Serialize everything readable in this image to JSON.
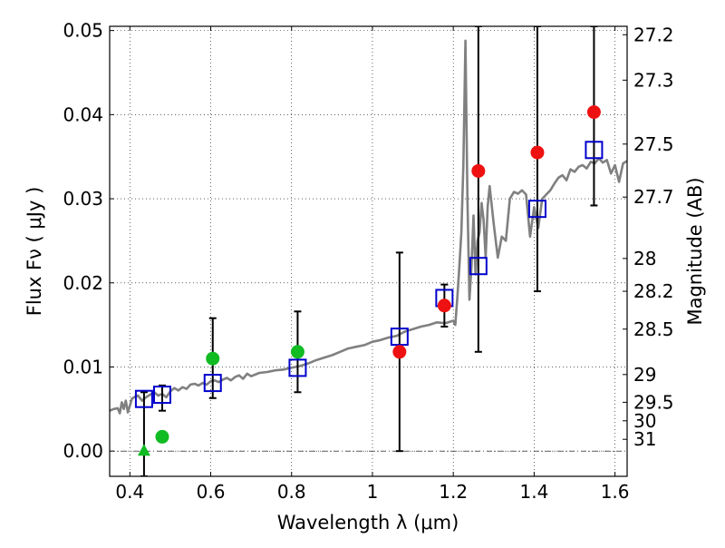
{
  "chart_data": {
    "type": "scatter",
    "xlabel": "Wavelength  λ (μm)",
    "ylabel": "Flux  Fν  ( μJy )",
    "ylabel2": "Magnitude (AB)",
    "xlim": [
      0.35,
      1.63
    ],
    "ylim": [
      -0.003,
      0.0505
    ],
    "grid": true,
    "x_ticks": [
      {
        "value": 0.4,
        "label": "0.4"
      },
      {
        "value": 0.6,
        "label": "0.6"
      },
      {
        "value": 0.8,
        "label": "0.8"
      },
      {
        "value": 1.0,
        "label": "1"
      },
      {
        "value": 1.2,
        "label": "1.2"
      },
      {
        "value": 1.4,
        "label": "1.4"
      },
      {
        "value": 1.6,
        "label": "1.6"
      }
    ],
    "y_ticks": [
      {
        "value": 0.0,
        "label": "0.00"
      },
      {
        "value": 0.01,
        "label": "0.01"
      },
      {
        "value": 0.02,
        "label": "0.02"
      },
      {
        "value": 0.03,
        "label": "0.03"
      },
      {
        "value": 0.04,
        "label": "0.04"
      },
      {
        "value": 0.05,
        "label": "0.05"
      }
    ],
    "right_ticks": [
      {
        "flux": 0.0495,
        "label": "27.2"
      },
      {
        "flux": 0.0441,
        "label": "27.3"
      },
      {
        "flux": 0.0365,
        "label": "27.5"
      },
      {
        "flux": 0.0302,
        "label": "27.7"
      },
      {
        "flux": 0.0229,
        "label": "28"
      },
      {
        "flux": 0.019,
        "label": "28.2"
      },
      {
        "flux": 0.0145,
        "label": "28.5"
      },
      {
        "flux": 0.0091,
        "label": "29"
      },
      {
        "flux": 0.0058,
        "label": "29.5"
      },
      {
        "flux": 0.0036,
        "label": "30"
      },
      {
        "flux": 0.0014,
        "label": "31"
      }
    ],
    "dashdot_line": 0.0,
    "colors": {
      "model": "#808080",
      "observed_green": "#11bb22",
      "observed_red": "#ee1111",
      "model_box": "#0000cc",
      "errorbar": "#000000"
    },
    "series": [
      {
        "name": "model SED",
        "kind": "line",
        "x": [
          0.35,
          0.36,
          0.37,
          0.375,
          0.38,
          0.385,
          0.39,
          0.395,
          0.4,
          0.405,
          0.41,
          0.42,
          0.43,
          0.44,
          0.45,
          0.46,
          0.47,
          0.48,
          0.49,
          0.5,
          0.51,
          0.52,
          0.53,
          0.54,
          0.55,
          0.56,
          0.57,
          0.58,
          0.59,
          0.6,
          0.61,
          0.62,
          0.63,
          0.64,
          0.65,
          0.66,
          0.67,
          0.68,
          0.69,
          0.7,
          0.72,
          0.74,
          0.76,
          0.78,
          0.8,
          0.82,
          0.84,
          0.86,
          0.88,
          0.9,
          0.92,
          0.94,
          0.96,
          0.98,
          1.0,
          1.02,
          1.04,
          1.06,
          1.08,
          1.1,
          1.12,
          1.14,
          1.16,
          1.18,
          1.2,
          1.205,
          1.21,
          1.215,
          1.22,
          1.225,
          1.23,
          1.235,
          1.24,
          1.245,
          1.25,
          1.255,
          1.26,
          1.265,
          1.27,
          1.275,
          1.28,
          1.285,
          1.29,
          1.3,
          1.31,
          1.32,
          1.33,
          1.34,
          1.35,
          1.36,
          1.37,
          1.38,
          1.39,
          1.4,
          1.41,
          1.42,
          1.43,
          1.44,
          1.45,
          1.46,
          1.47,
          1.48,
          1.49,
          1.5,
          1.51,
          1.52,
          1.53,
          1.54,
          1.55,
          1.56,
          1.57,
          1.58,
          1.59,
          1.6,
          1.61,
          1.62,
          1.63
        ],
        "y": [
          0.0048,
          0.005,
          0.0051,
          0.0045,
          0.0058,
          0.005,
          0.006,
          0.0046,
          0.0054,
          0.0062,
          0.0064,
          0.0066,
          0.006,
          0.0064,
          0.0067,
          0.007,
          0.0066,
          0.0068,
          0.0064,
          0.0071,
          0.0075,
          0.0072,
          0.0076,
          0.0074,
          0.0079,
          0.008,
          0.0078,
          0.0081,
          0.0079,
          0.0083,
          0.0084,
          0.0082,
          0.0085,
          0.0087,
          0.0084,
          0.0088,
          0.009,
          0.0086,
          0.0092,
          0.0089,
          0.0093,
          0.0094,
          0.0096,
          0.0097,
          0.0099,
          0.0101,
          0.0104,
          0.0108,
          0.0111,
          0.0114,
          0.0118,
          0.0122,
          0.0124,
          0.0126,
          0.013,
          0.0132,
          0.0135,
          0.0137,
          0.0142,
          0.0145,
          0.0148,
          0.015,
          0.0153,
          0.0152,
          0.0155,
          0.015,
          0.0182,
          0.022,
          0.026,
          0.034,
          0.0488,
          0.03,
          0.018,
          0.022,
          0.028,
          0.021,
          0.025,
          0.026,
          0.0295,
          0.0275,
          0.023,
          0.029,
          0.0315,
          0.027,
          0.023,
          0.0255,
          0.025,
          0.03,
          0.0308,
          0.0306,
          0.031,
          0.0305,
          0.0255,
          0.029,
          0.0265,
          0.03,
          0.0305,
          0.031,
          0.0318,
          0.0325,
          0.0328,
          0.0322,
          0.0335,
          0.0332,
          0.0338,
          0.034,
          0.0336,
          0.0344,
          0.0342,
          0.0348,
          0.0343,
          0.0346,
          0.033,
          0.034,
          0.032,
          0.0342,
          0.0345
        ]
      },
      {
        "name": "observed green circles",
        "kind": "points",
        "marker": "circle",
        "points": [
          {
            "x": 0.48,
            "y": 0.0017,
            "err_low": 0.0048,
            "err_high": 0.0078
          },
          {
            "x": 0.605,
            "y": 0.011,
            "err_low": 0.0063,
            "err_high": 0.0158
          },
          {
            "x": 0.815,
            "y": 0.0118,
            "err_low": 0.007,
            "err_high": 0.0166
          }
        ]
      },
      {
        "name": "observed green triangle",
        "kind": "points",
        "marker": "triangle",
        "points": [
          {
            "x": 0.435,
            "y": 0.0001,
            "err_low": -0.003,
            "err_high": 0.007
          }
        ]
      },
      {
        "name": "observed red circles",
        "kind": "points",
        "marker": "circle",
        "points": [
          {
            "x": 1.067,
            "y": 0.0118,
            "err_low": 0.0,
            "err_high": 0.0236
          },
          {
            "x": 1.178,
            "y": 0.0173,
            "err_low": 0.0148,
            "err_high": 0.0198
          },
          {
            "x": 1.262,
            "y": 0.0333,
            "err_low": 0.0118,
            "err_high": 0.0505
          },
          {
            "x": 1.408,
            "y": 0.0355,
            "err_low": 0.019,
            "err_high": 0.0505
          },
          {
            "x": 1.548,
            "y": 0.0403,
            "err_low": 0.0292,
            "err_high": 0.0505
          }
        ]
      },
      {
        "name": "model photometry",
        "kind": "points",
        "marker": "square",
        "points": [
          {
            "x": 0.435,
            "y": 0.0062
          },
          {
            "x": 0.48,
            "y": 0.0067
          },
          {
            "x": 0.605,
            "y": 0.0081
          },
          {
            "x": 0.815,
            "y": 0.0099
          },
          {
            "x": 1.067,
            "y": 0.0136
          },
          {
            "x": 1.178,
            "y": 0.0182
          },
          {
            "x": 1.262,
            "y": 0.022
          },
          {
            "x": 1.408,
            "y": 0.0288
          },
          {
            "x": 1.548,
            "y": 0.0358
          }
        ]
      }
    ]
  }
}
